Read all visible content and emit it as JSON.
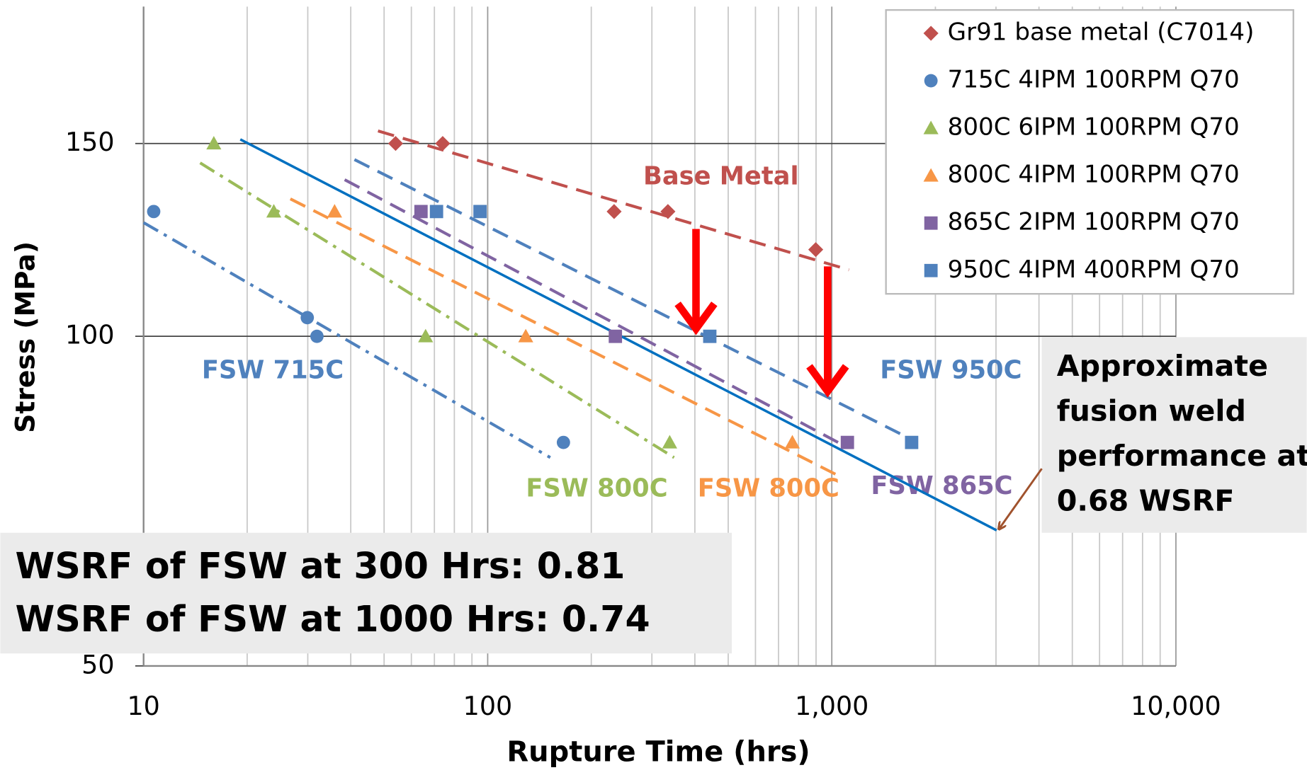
{
  "chart_data": {
    "type": "scatter",
    "x_label": "Rupture Time (hrs)",
    "y_label": "Stress (MPa)",
    "xscale": "log",
    "yscale": "log",
    "xlim": [
      10,
      10000
    ],
    "ylim": [
      50,
      200
    ],
    "xticks": [
      10,
      100,
      {
        "value": 1000,
        "label": "1,000"
      },
      {
        "value": 10000,
        "label": "10,000"
      }
    ],
    "yticks": [
      50,
      100,
      150
    ],
    "grid": true,
    "legend": "upper right",
    "series": [
      {
        "name": "Gr91 base metal (C7014)",
        "color": "#c0504d",
        "marker": "diamond",
        "x": [
          54,
          74,
          233,
          334,
          898
        ],
        "values": [
          150,
          150,
          130,
          130,
          120
        ]
      },
      {
        "name": "715C 4IPM 100RPM Q70",
        "color": "#4f81bd",
        "marker": "circle",
        "x": [
          10.7,
          29.9,
          31.9,
          166
        ],
        "values": [
          130,
          104,
          100,
          80
        ]
      },
      {
        "name": "800C 6IPM 100RPM Q70",
        "color": "#9bbb59",
        "marker": "triangle",
        "x": [
          16,
          23.9,
          66,
          338
        ],
        "values": [
          150,
          130,
          100,
          80
        ]
      },
      {
        "name": "800C 4IPM 100RPM Q70",
        "color": "#f79646",
        "marker": "triangle",
        "x": [
          35.9,
          129,
          768
        ],
        "values": [
          130,
          100,
          80
        ]
      },
      {
        "name": "865C 2IPM 100RPM Q70",
        "color": "#8064a2",
        "marker": "square",
        "x": [
          64,
          235,
          1110
        ],
        "values": [
          130,
          100,
          80
        ]
      },
      {
        "name": "950C 4IPM 400RPM Q70",
        "color": "#4f81bd",
        "marker": "square",
        "x": [
          71,
          95,
          442,
          1706
        ],
        "values": [
          130,
          130,
          100,
          80
        ]
      }
    ],
    "trendlines": [
      {
        "label": "Base Metal",
        "color": "#c0504d",
        "dash": "dashed",
        "x": [
          48,
          1122
        ],
        "values": [
          154,
          115
        ]
      },
      {
        "label": "FSW 715C",
        "color": "#4f81bd",
        "dash": "dashdot",
        "x": [
          10,
          152
        ],
        "values": [
          127,
          77.5
        ]
      },
      {
        "label": "FSW 800C",
        "color": "#9bbb59",
        "dash": "dashdot",
        "x": [
          14.6,
          348
        ],
        "values": [
          144,
          77.5
        ]
      },
      {
        "label": "FSW 800C",
        "color": "#f79646",
        "dash": "dashed",
        "x": [
          26.7,
          1072
        ],
        "values": [
          133.5,
          74.3
        ]
      },
      {
        "label": "FSW 865C",
        "color": "#8064a2",
        "dash": "dashed",
        "x": [
          38.4,
          1091
        ],
        "values": [
          139,
          79.4
        ]
      },
      {
        "label": "FSW 950C",
        "color": "#4f81bd",
        "dash": "dashed",
        "x": [
          41,
          1775
        ],
        "values": [
          145,
          80
        ]
      },
      {
        "color": "#0070c0",
        "dash": "solid",
        "x": [
          19.1,
          3013
        ],
        "values": [
          151.3,
          66.5
        ]
      }
    ],
    "note_lines": [
      "Approximate",
      "fusion weld",
      "performance at",
      "0.68 WSRF"
    ],
    "summary_lines": [
      "WSRF of FSW at 300 Hrs: 0.81",
      "WSRF of FSW at 1000 Hrs: 0.74"
    ]
  }
}
